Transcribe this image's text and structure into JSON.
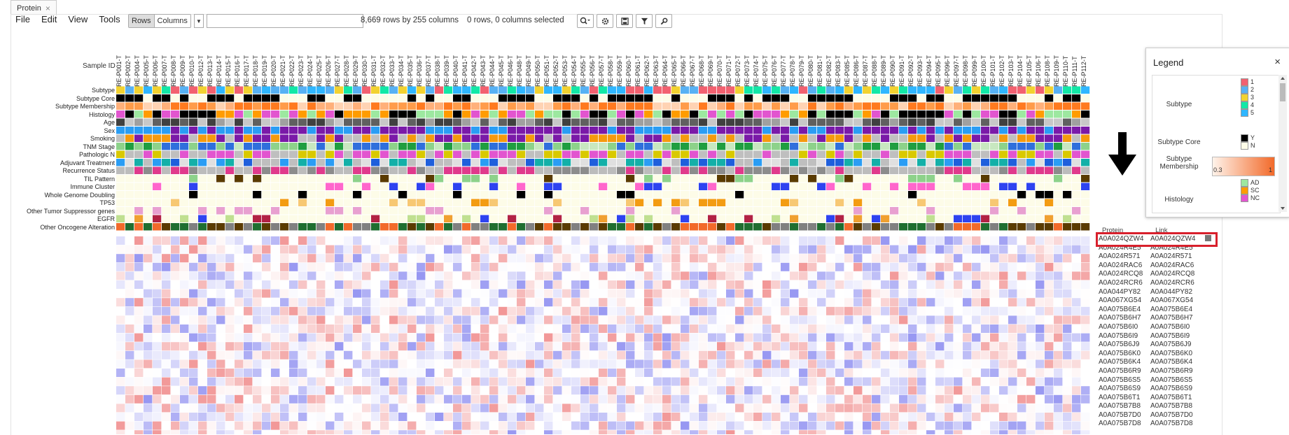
{
  "tab": {
    "title": "Protein",
    "close": "×"
  },
  "menu": {
    "items": [
      "File",
      "Edit",
      "View",
      "Tools"
    ]
  },
  "toolbar": {
    "rows_label": "Rows",
    "columns_label": "Columns",
    "search_value": "",
    "row_count_text": "8,669 rows by 255 columns",
    "selection_text": "0 rows, 0 columns selected"
  },
  "column_header_label": "Sample ID",
  "samples": [
    "RE-P001-T",
    "RE-P002-T",
    "RE-P004-T",
    "RE-P005-T",
    "RE-P006-T",
    "RE-P007-T",
    "RE-P008-T",
    "RE-P009-T",
    "RE-P010-T",
    "RE-P012-T",
    "RE-P013-T",
    "RE-P014-T",
    "RE-P015-T",
    "RE-P016-T",
    "RE-P017-T",
    "RE-P018-T",
    "RE-P019-T",
    "RE-P020-T",
    "RE-P021-T",
    "RE-P022-T",
    "RE-P023-T",
    "RE-P024-T",
    "RE-P025-T",
    "RE-P026-T",
    "RE-P027-T",
    "RE-P028-T",
    "RE-P029-T",
    "RE-P030-T",
    "RE-P031-T",
    "RE-P032-T",
    "RE-P033-T",
    "RE-P034-T",
    "RE-P035-T",
    "RE-P036-T",
    "RE-P037-T",
    "RE-P038-T",
    "RE-P039-T",
    "RE-P040-T",
    "RE-P041-T",
    "RE-P042-T",
    "RE-P043-T",
    "RE-P044-T",
    "RE-P045-T",
    "RE-P046-T",
    "RE-P048-T",
    "RE-P049-T",
    "RE-P050-T",
    "RE-P051-T",
    "RE-P052-T",
    "RE-P053-T",
    "RE-P054-T",
    "RE-P055-T",
    "RE-P056-T",
    "RE-P057-T",
    "RE-P058-T",
    "RE-P059-T",
    "RE-P060-T",
    "RE-P061-T",
    "RE-P062-T",
    "RE-P063-T",
    "RE-P064-T",
    "RE-P065-T",
    "RE-P066-T",
    "RE-P067-T",
    "RE-P068-T",
    "RE-P069-T",
    "RE-P070-T",
    "RE-P071-T",
    "RE-P072-T",
    "RE-P073-T",
    "RE-P074-T",
    "RE-P075-T",
    "RE-P076-T",
    "RE-P077-T",
    "RE-P078-T",
    "RE-P079-T",
    "RE-P080-T",
    "RE-P081-T",
    "RE-P082-T",
    "RE-P083-T",
    "RE-P085-T",
    "RE-P086-T",
    "RE-P087-T",
    "RE-P088-T",
    "RE-P089-T",
    "RE-P090-T",
    "RE-P091-T",
    "RE-P092-T",
    "RE-P093-T",
    "RE-P094-T",
    "RE-P095-T",
    "RE-P096-T",
    "RE-P097-T",
    "RE-P098-T",
    "RE-P099-T",
    "RE-P100-T",
    "RE-P101-T",
    "RE-P102-T",
    "RE-P103-T",
    "RE-P104-T",
    "RE-P105-T",
    "RE-P106-T",
    "RE-P108-T",
    "RE-P109-T",
    "RE-P110-T",
    "RE-P111-T",
    "RE-P112-T"
  ],
  "tracks": [
    "Subtype",
    "Subtype Core",
    "Subtype Membership",
    "Histology",
    "Age",
    "Sex",
    "Smoking",
    "TNM Stage",
    "Pathologic N",
    "Adjuvant Treatment",
    "Recurrence Status",
    "TIL Pattern",
    "Immune Cluster",
    "Whole Genome Doubling",
    "TP53",
    "Other Tumor Suppressor genes",
    "EGFR",
    "Other Oncogene Alteration"
  ],
  "row_headers": {
    "protein": "Protein",
    "link": "Link"
  },
  "rows": [
    {
      "protein": "A0A024QZW4",
      "link": "A0A024QZW4",
      "selected": true
    },
    {
      "protein": "A0A024R4E5",
      "link": "A0A024R4E5"
    },
    {
      "protein": "A0A024R571",
      "link": "A0A024R571"
    },
    {
      "protein": "A0A024RAC6",
      "link": "A0A024RAC6"
    },
    {
      "protein": "A0A024RCQ8",
      "link": "A0A024RCQ8"
    },
    {
      "protein": "A0A024RCR6",
      "link": "A0A024RCR6"
    },
    {
      "protein": "A0A044PY82",
      "link": "A0A044PY82"
    },
    {
      "protein": "A0A067XG54",
      "link": "A0A067XG54"
    },
    {
      "protein": "A0A075B6E4",
      "link": "A0A075B6E4"
    },
    {
      "protein": "A0A075B6H7",
      "link": "A0A075B6H7"
    },
    {
      "protein": "A0A075B6I0",
      "link": "A0A075B6I0"
    },
    {
      "protein": "A0A075B6I9",
      "link": "A0A075B6I9"
    },
    {
      "protein": "A0A075B6J9",
      "link": "A0A075B6J9"
    },
    {
      "protein": "A0A075B6K0",
      "link": "A0A075B6K0"
    },
    {
      "protein": "A0A075B6K4",
      "link": "A0A075B6K4"
    },
    {
      "protein": "A0A075B6R9",
      "link": "A0A075B6R9"
    },
    {
      "protein": "A0A075B6S5",
      "link": "A0A075B6S5"
    },
    {
      "protein": "A0A075B6S9",
      "link": "A0A075B6S9"
    },
    {
      "protein": "A0A075B6T1",
      "link": "A0A075B6T1"
    },
    {
      "protein": "A0A075B7B8",
      "link": "A0A075B7B8"
    },
    {
      "protein": "A0A075B7D0",
      "link": "A0A075B7D0"
    },
    {
      "protein": "A0A075B7D8",
      "link": "A0A075B7D8"
    }
  ],
  "legend": {
    "title": "Legend",
    "close": "×",
    "subtype": {
      "title": "Subtype",
      "values": [
        "1",
        "2",
        "3",
        "4",
        "5"
      ],
      "colors": [
        "#f26170",
        "#57b1f4",
        "#f2d230",
        "#12e8a7",
        "#2fb6ff"
      ]
    },
    "subtype_core": {
      "title": "Subtype Core",
      "values": [
        "Y",
        "N"
      ],
      "colors": [
        "#000000",
        "#fdfce8"
      ]
    },
    "subtype_membership": {
      "title": "Subtype Membership",
      "min": "0.3",
      "max": "1"
    },
    "histology": {
      "title": "Histology",
      "values": [
        "AD",
        "SC",
        "NC"
      ],
      "colors": [
        "#9de8a0",
        "#ff9c00",
        "#e255cf"
      ]
    }
  },
  "palette": {
    "selection": "#d8202c",
    "heat_pos": "#f08b8b",
    "heat_neg": "#8b8bf0"
  }
}
